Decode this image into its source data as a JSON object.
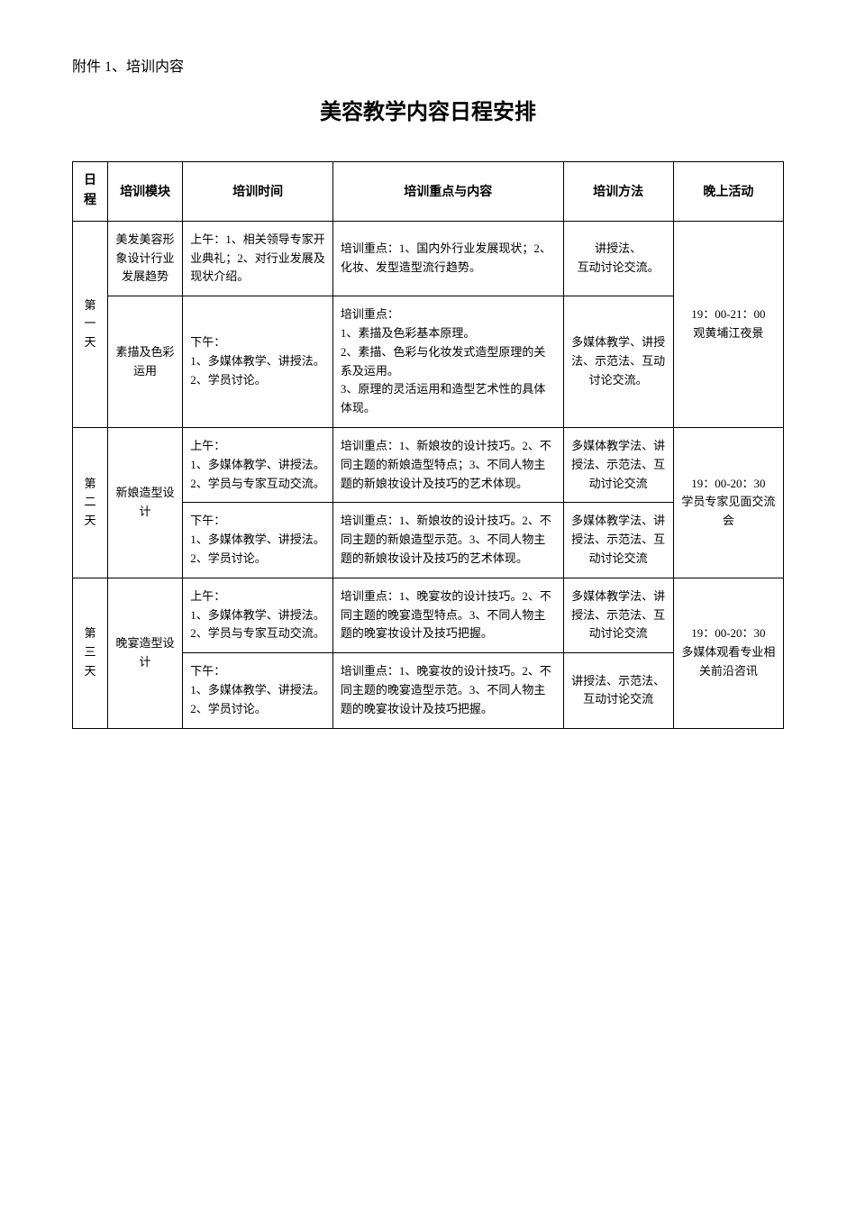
{
  "attachment_label": "附件 1、培训内容",
  "main_title": "美容教学内容日程安排",
  "headers": {
    "day": "日\n程",
    "module": "培训模块",
    "time": "培训时间",
    "content": "培训重点与内容",
    "method": "培训方法",
    "evening": "晚上活动"
  },
  "rows": [
    {
      "day": "第\n一\n天",
      "day_rowspan": 2,
      "module": "美发美容形象设计行业发展趋势",
      "module_rowspan": 1,
      "time": "上午：1、相关领导专家开业典礼；2、对行业发展及现状介绍。",
      "content": "培训重点：1、国内外行业发展现状；2、化妆、发型造型流行趋势。",
      "method": "讲授法、\n互动讨论交流。",
      "evening": "19：00-21：00\n观黄埔江夜景",
      "evening_rowspan": 2
    },
    {
      "module": "素描及色彩\n运用",
      "module_rowspan": 1,
      "time": "下午：\n1、多媒体教学、讲授法。\n2、学员讨论。",
      "content": "培训重点：\n1、素描及色彩基本原理。\n2、素描、色彩与化妆发式造型原理的关系及运用。\n3、原理的灵活运用和造型艺术性的具体体现。",
      "method": "多媒体教学、讲授法、示范法、互动讨论交流。"
    },
    {
      "day": "第\n二\n天",
      "day_rowspan": 2,
      "module": "新娘造型设计",
      "module_rowspan": 2,
      "time": "上午：\n1、多媒体教学、讲授法。\n2、学员与专家互动交流。",
      "content": "培训重点：1、新娘妆的设计技巧。2、不同主题的新娘造型特点；3、不同人物主题的新娘妆设计及技巧的艺术体现。",
      "method": "多媒体教学法、讲授法、示范法、互动讨论交流",
      "evening": "19：00-20：30\n学员专家见面交流会",
      "evening_rowspan": 2
    },
    {
      "time": "下午：\n1、多媒体教学、讲授法。\n2、学员讨论。",
      "content": "培训重点：1、新娘妆的设计技巧。2、不同主题的新娘造型示范。3、不同人物主题的新娘妆设计及技巧的艺术体现。",
      "method": "多媒体教学法、讲授法、示范法、互动讨论交流"
    },
    {
      "day": "第\n三\n天",
      "day_rowspan": 2,
      "module": "晚宴造型设计",
      "module_rowspan": 2,
      "time": "上午：\n1、多媒体教学、讲授法。\n2、学员与专家互动交流。",
      "content": "培训重点：1、晚宴妆的设计技巧。2、不同主题的晚宴造型特点。3、不同人物主题的晚宴妆设计及技巧把握。",
      "method": "多媒体教学法、讲授法、示范法、互动讨论交流",
      "evening": "19：00-20：30\n多媒体观看专业相关前沿咨讯",
      "evening_rowspan": 2
    },
    {
      "time": "下午：\n1、多媒体教学、讲授法。\n2、学员讨论。",
      "content": "培训重点：1、晚宴妆的设计技巧。2、不同主题的晚宴造型示范。3、不同人物主题的晚宴妆设计及技巧把握。",
      "method": "讲授法、示范法、互动讨论交流"
    }
  ]
}
